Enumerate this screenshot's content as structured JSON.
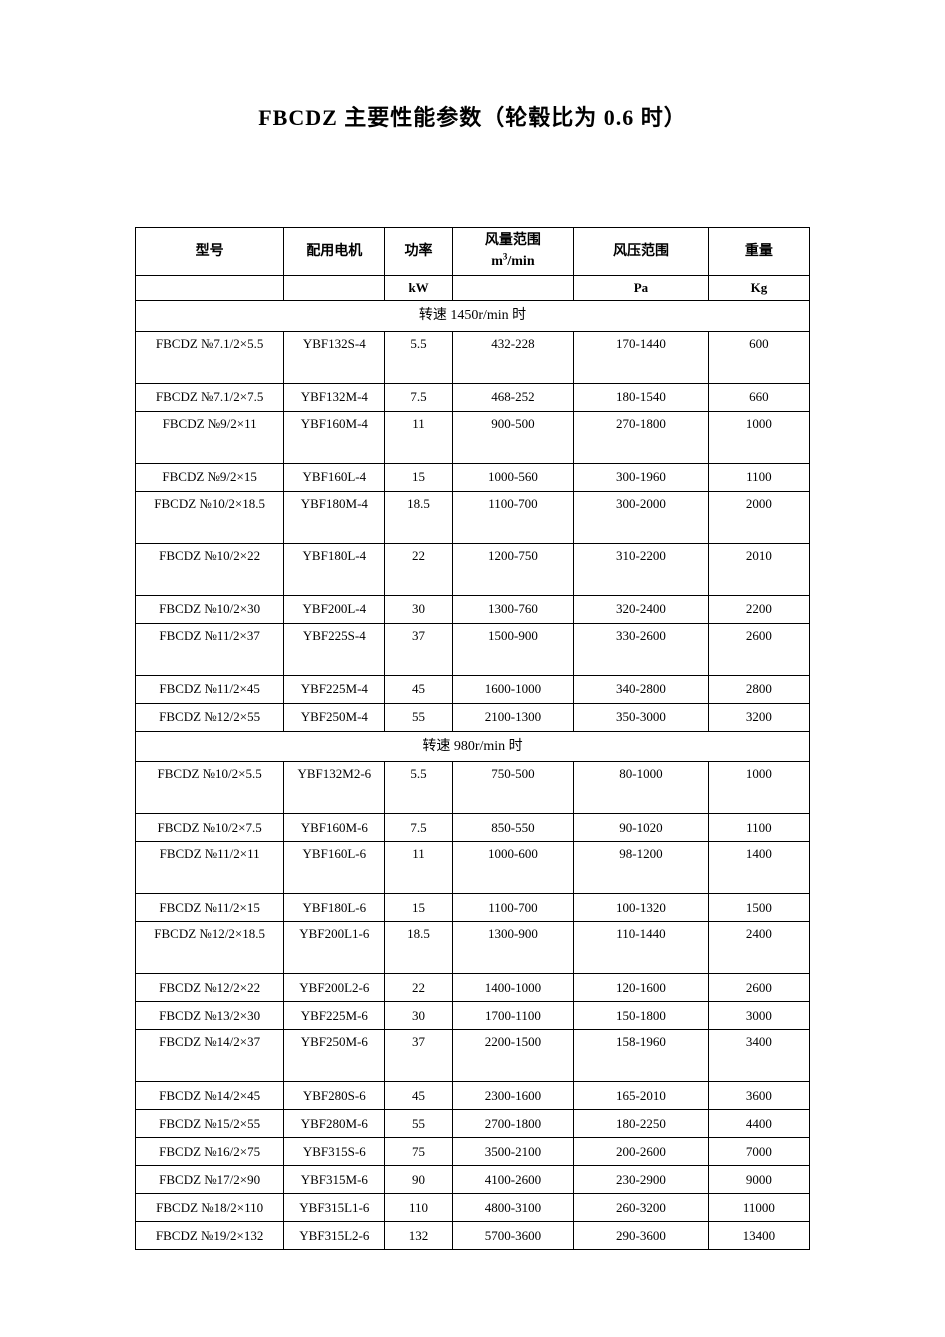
{
  "title": "FBCDZ 主要性能参数（轮毂比为 0.6 时）",
  "table_style": {
    "border_color": "#000000",
    "background_color": "#ffffff",
    "text_color": "#000000",
    "font_family": "SimSun",
    "header_fontsize": 14,
    "cell_fontsize": 13
  },
  "columns": [
    {
      "label": "型号",
      "unit": "",
      "width_pct": 22
    },
    {
      "label": "配用电机",
      "unit": "",
      "width_pct": 15
    },
    {
      "label": "功率",
      "unit": "kW",
      "width_pct": 10
    },
    {
      "label": "风量范围",
      "unit": "m³/min",
      "width_pct": 18
    },
    {
      "label": "风压范围",
      "unit": "Pa",
      "width_pct": 20
    },
    {
      "label": "重量",
      "unit": "Kg",
      "width_pct": 15
    }
  ],
  "sections": [
    {
      "header": "转速 1450r/min 时",
      "rows": [
        {
          "h": "tall",
          "model": "FBCDZ №7.1/2×5.5",
          "motor": "YBF132S-4",
          "power": "5.5",
          "flow": "432-228",
          "pressure": "170-1440",
          "weight": "600"
        },
        {
          "h": "short",
          "model": "FBCDZ №7.1/2×7.5",
          "motor": "YBF132M-4",
          "power": "7.5",
          "flow": "468-252",
          "pressure": "180-1540",
          "weight": "660"
        },
        {
          "h": "tall",
          "model": "FBCDZ №9/2×11",
          "motor": "YBF160M-4",
          "power": "11",
          "flow": "900-500",
          "pressure": "270-1800",
          "weight": "1000"
        },
        {
          "h": "short",
          "model": "FBCDZ №9/2×15",
          "motor": "YBF160L-4",
          "power": "15",
          "flow": "1000-560",
          "pressure": "300-1960",
          "weight": "1100"
        },
        {
          "h": "tall",
          "model": "FBCDZ №10/2×18.5",
          "motor": "YBF180M-4",
          "power": "18.5",
          "flow": "1100-700",
          "pressure": "300-2000",
          "weight": "2000"
        },
        {
          "h": "tall",
          "model": "FBCDZ №10/2×22",
          "motor": "YBF180L-4",
          "power": "22",
          "flow": "1200-750",
          "pressure": "310-2200",
          "weight": "2010"
        },
        {
          "h": "short",
          "model": "FBCDZ №10/2×30",
          "motor": "YBF200L-4",
          "power": "30",
          "flow": "1300-760",
          "pressure": "320-2400",
          "weight": "2200"
        },
        {
          "h": "tall",
          "model": "FBCDZ №11/2×37",
          "motor": "YBF225S-4",
          "power": "37",
          "flow": "1500-900",
          "pressure": "330-2600",
          "weight": "2600"
        },
        {
          "h": "short",
          "model": "FBCDZ №11/2×45",
          "motor": "YBF225M-4",
          "power": "45",
          "flow": "1600-1000",
          "pressure": "340-2800",
          "weight": "2800"
        },
        {
          "h": "short",
          "model": "FBCDZ №12/2×55",
          "motor": "YBF250M-4",
          "power": "55",
          "flow": "2100-1300",
          "pressure": "350-3000",
          "weight": "3200"
        }
      ]
    },
    {
      "header": "转速 980r/min 时",
      "rows": [
        {
          "h": "tall",
          "model": "FBCDZ №10/2×5.5",
          "motor": "YBF132M2-6",
          "power": "5.5",
          "flow": "750-500",
          "pressure": "80-1000",
          "weight": "1000"
        },
        {
          "h": "short",
          "model": "FBCDZ №10/2×7.5",
          "motor": "YBF160M-6",
          "power": "7.5",
          "flow": "850-550",
          "pressure": "90-1020",
          "weight": "1100"
        },
        {
          "h": "tall",
          "model": "FBCDZ №11/2×11",
          "motor": "YBF160L-6",
          "power": "11",
          "flow": "1000-600",
          "pressure": "98-1200",
          "weight": "1400"
        },
        {
          "h": "short",
          "model": "FBCDZ №11/2×15",
          "motor": "YBF180L-6",
          "power": "15",
          "flow": "1100-700",
          "pressure": "100-1320",
          "weight": "1500"
        },
        {
          "h": "tall",
          "model": "FBCDZ №12/2×18.5",
          "motor": "YBF200L1-6",
          "power": "18.5",
          "flow": "1300-900",
          "pressure": "110-1440",
          "weight": "2400"
        },
        {
          "h": "short",
          "model": "FBCDZ №12/2×22",
          "motor": "YBF200L2-6",
          "power": "22",
          "flow": "1400-1000",
          "pressure": "120-1600",
          "weight": "2600"
        },
        {
          "h": "short",
          "model": "FBCDZ №13/2×30",
          "motor": "YBF225M-6",
          "power": "30",
          "flow": "1700-1100",
          "pressure": "150-1800",
          "weight": "3000"
        },
        {
          "h": "tall",
          "model": "FBCDZ №14/2×37",
          "motor": "YBF250M-6",
          "power": "37",
          "flow": "2200-1500",
          "pressure": "158-1960",
          "weight": "3400"
        },
        {
          "h": "short",
          "model": "FBCDZ №14/2×45",
          "motor": "YBF280S-6",
          "power": "45",
          "flow": "2300-1600",
          "pressure": "165-2010",
          "weight": "3600"
        },
        {
          "h": "short",
          "model": "FBCDZ №15/2×55",
          "motor": "YBF280M-6",
          "power": "55",
          "flow": "2700-1800",
          "pressure": "180-2250",
          "weight": "4400"
        },
        {
          "h": "short",
          "model": "FBCDZ №16/2×75",
          "motor": "YBF315S-6",
          "power": "75",
          "flow": "3500-2100",
          "pressure": "200-2600",
          "weight": "7000"
        },
        {
          "h": "short",
          "model": "FBCDZ №17/2×90",
          "motor": "YBF315M-6",
          "power": "90",
          "flow": "4100-2600",
          "pressure": "230-2900",
          "weight": "9000"
        },
        {
          "h": "short",
          "model": "FBCDZ №18/2×110",
          "motor": "YBF315L1-6",
          "power": "110",
          "flow": "4800-3100",
          "pressure": "260-3200",
          "weight": "11000"
        },
        {
          "h": "short",
          "model": "FBCDZ №19/2×132",
          "motor": "YBF315L2-6",
          "power": "132",
          "flow": "5700-3600",
          "pressure": "290-3600",
          "weight": "13400"
        }
      ]
    }
  ]
}
